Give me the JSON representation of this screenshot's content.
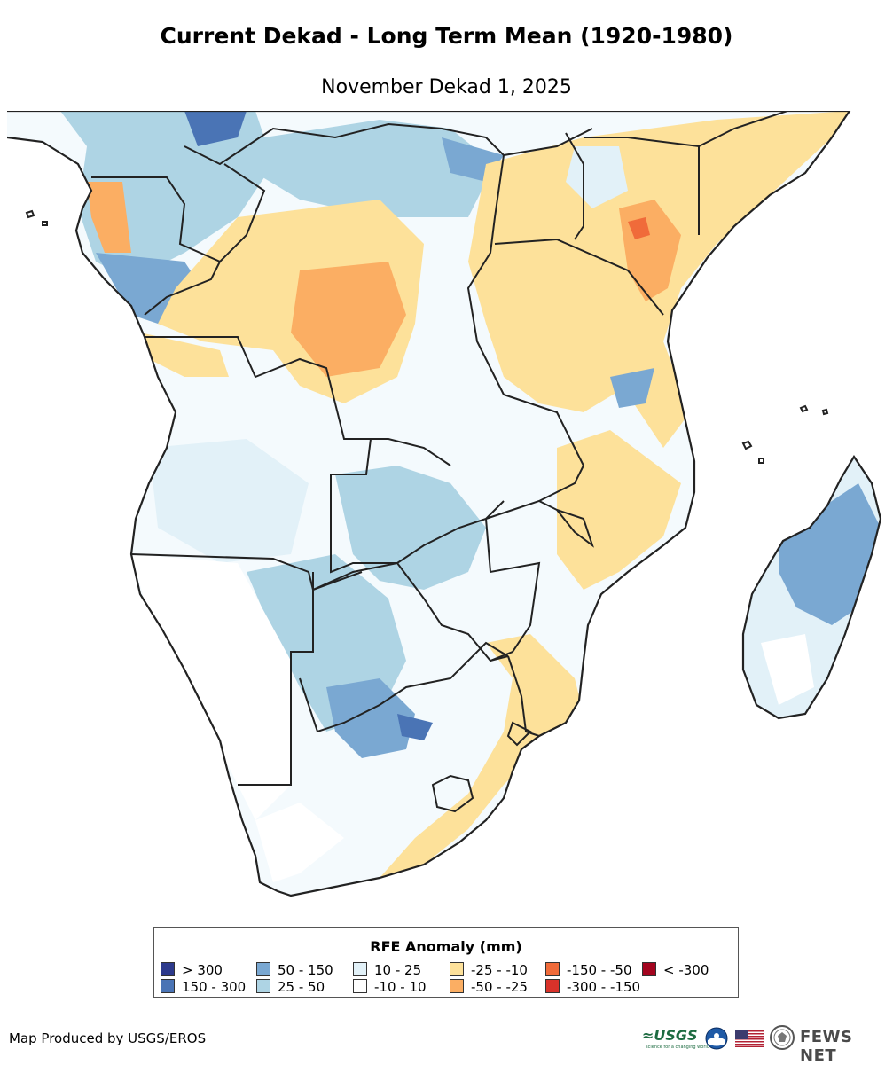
{
  "title": "Current Dekad - Long Term Mean (1920-1980)",
  "subtitle": "November Dekad 1, 2025",
  "legend": {
    "title": "RFE Anomaly (mm)",
    "items": [
      {
        "label": "> 300",
        "color": "#2d3a8c"
      },
      {
        "label": "150 - 300",
        "color": "#4a74b5"
      },
      {
        "label": "50 - 150",
        "color": "#7aa8d2"
      },
      {
        "label": "25 - 50",
        "color": "#aed4e4"
      },
      {
        "label": "10 - 25",
        "color": "#e2f1f8"
      },
      {
        "label": "-10 - 10",
        "color": "#ffffff"
      },
      {
        "label": "-25 - -10",
        "color": "#fde19a"
      },
      {
        "label": "-50 - -25",
        "color": "#fbae63"
      },
      {
        "label": "-150 - -50",
        "color": "#f06b3a"
      },
      {
        "label": "-300 - -150",
        "color": "#d8322a"
      },
      {
        "label": "< -300",
        "color": "#a3051f"
      }
    ]
  },
  "credit": "Map Produced by USGS/EROS",
  "logos": {
    "usgs": "≈USGS",
    "usgs_tagline": "science for a changing world",
    "fews": "FEWS NET"
  }
}
